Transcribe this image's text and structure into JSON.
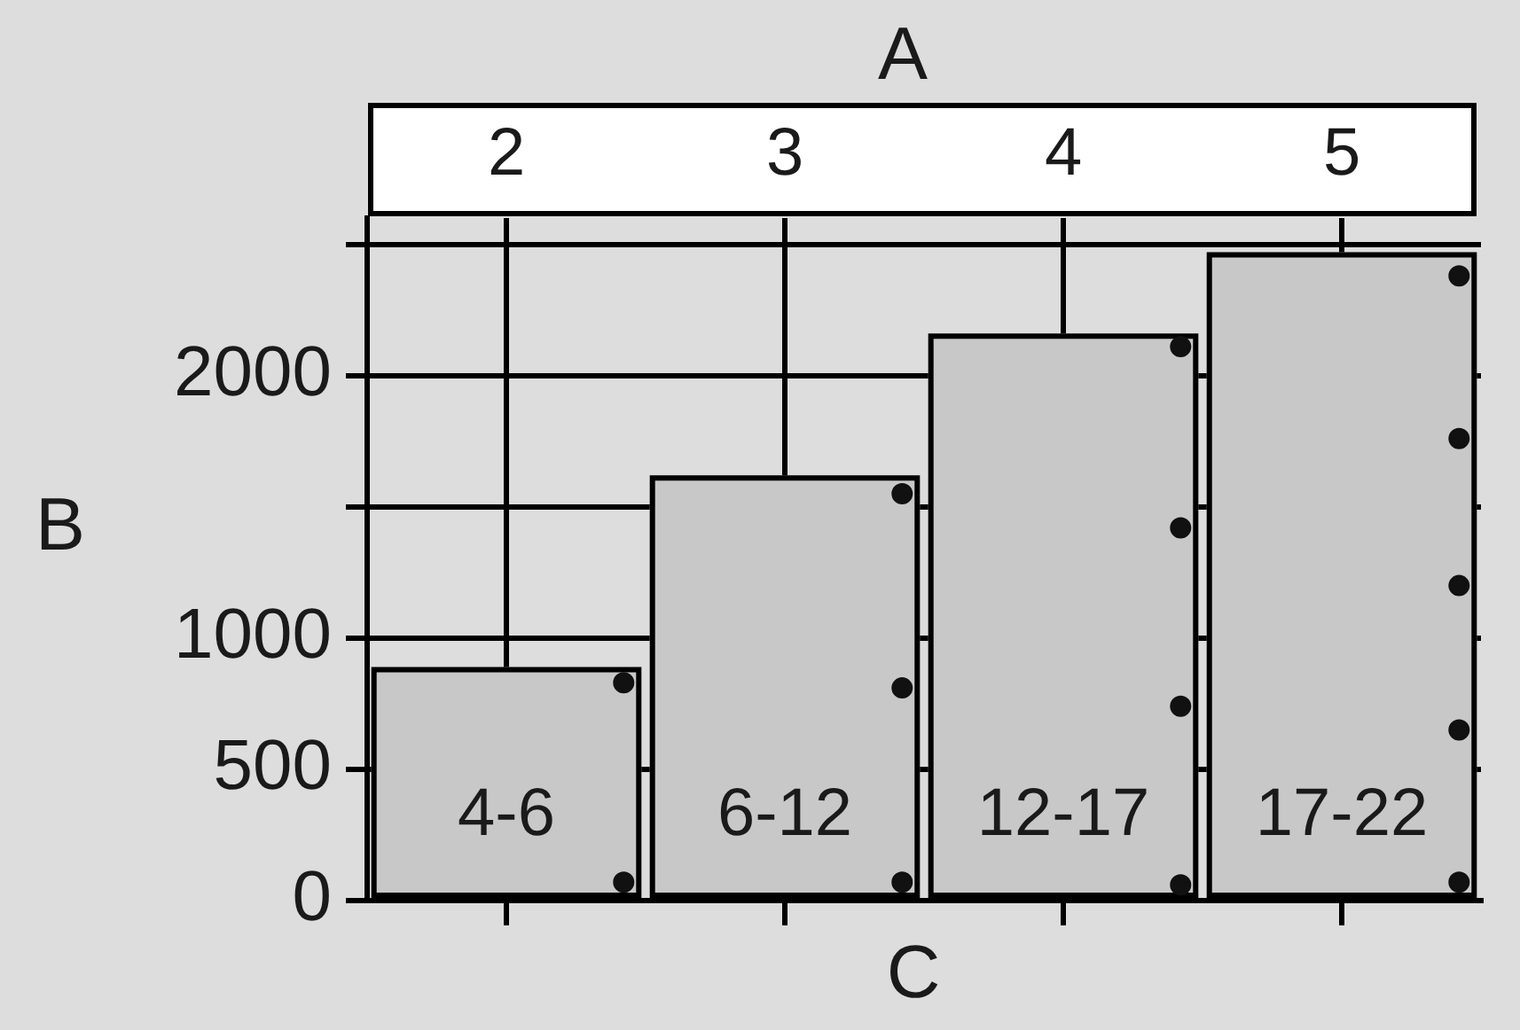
{
  "chart_data": {
    "type": "bar",
    "x2label": "A",
    "xlabel": "C",
    "ylabel": "B",
    "categories": [
      "2",
      "3",
      "4",
      "5"
    ],
    "series": [
      {
        "color": "#c8c8c8",
        "values": [
          890,
          1620,
          2160,
          2470
        ],
        "value_labels": [
          "4-6",
          "6-12",
          "12-17",
          "17-22"
        ]
      },
      {
        "type": "scatter",
        "color": "#111111",
        "marker": "circle",
        "x": [
          "2",
          "2",
          "3",
          "3",
          "3",
          "4",
          "4",
          "4",
          "4",
          "5",
          "5",
          "5",
          "5",
          "5"
        ],
        "values": [
          70,
          830,
          70,
          810,
          1550,
          60,
          740,
          1420,
          2110,
          70,
          650,
          1200,
          1760,
          2380
        ]
      }
    ],
    "ylim": [
      0,
      2600
    ],
    "yticks": [
      0,
      500,
      1000,
      {
        "value": 1500,
        "label": null
      },
      2000,
      {
        "value": 2500,
        "label": null
      }
    ],
    "grid": true
  }
}
